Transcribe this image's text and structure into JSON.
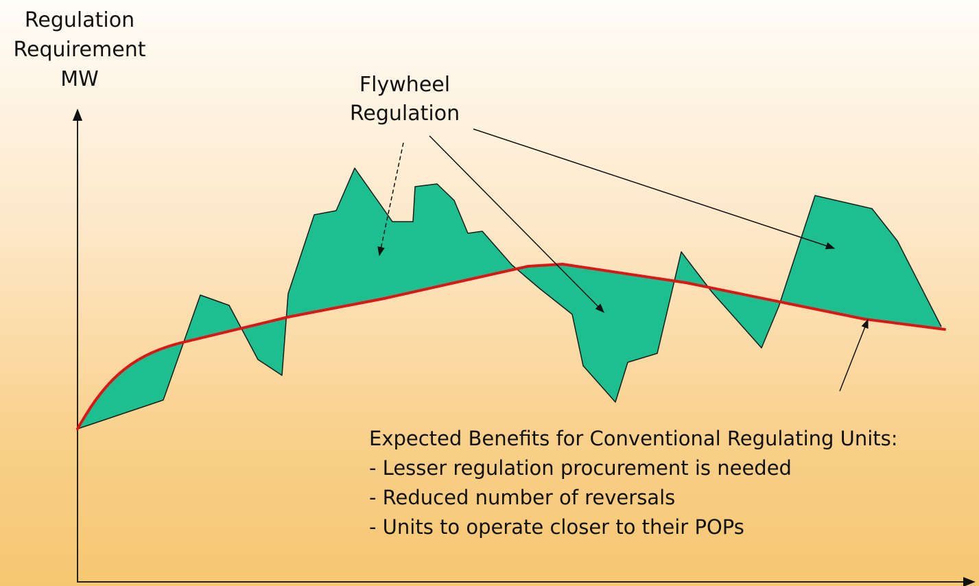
{
  "y_axis_label": [
    "Regulation",
    "Requirement",
    "MW"
  ],
  "flywheel_label": [
    "Flywheel",
    "Regulation"
  ],
  "benefits": {
    "heading": "Expected Benefits for Conventional Regulating Units:",
    "items": [
      "- Lesser regulation procurement is needed",
      "- Reduced number of reversals",
      "- Units to operate closer to their POPs"
    ]
  },
  "colors": {
    "flywheel_fill": "#1dbf8f",
    "baseline_line": "#e01414",
    "axis": "#222222",
    "arrows": "#111111"
  }
}
